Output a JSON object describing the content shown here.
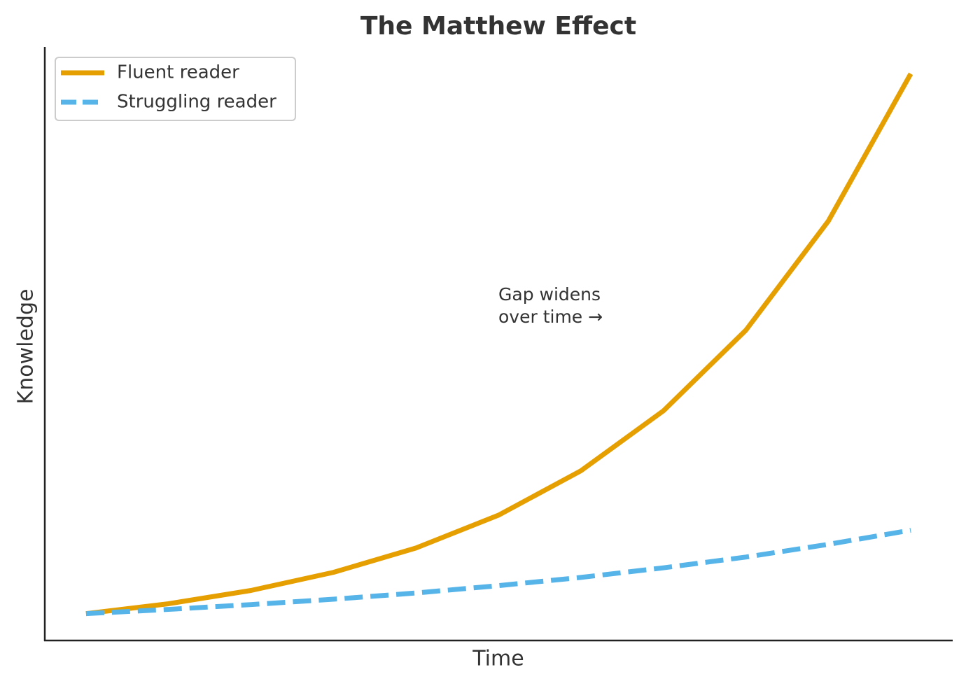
{
  "chart_data": {
    "type": "line",
    "title": "The Matthew Effect",
    "x_label": "Time",
    "y_label": "Knowledge",
    "x": [
      0,
      1,
      2,
      3,
      4,
      5,
      6,
      7,
      8,
      9,
      10
    ],
    "series": [
      {
        "name": "Fluent reader",
        "color": "#e69f00",
        "line_style": "solid",
        "values": [
          1,
          1.35,
          1.82,
          2.46,
          3.32,
          4.48,
          6.05,
          8.17,
          11.02,
          14.88,
          20.09
        ]
      },
      {
        "name": "Struggling reader",
        "color": "#56b4e9",
        "line_style": "dashed",
        "values": [
          1,
          1.15,
          1.32,
          1.51,
          1.73,
          1.99,
          2.28,
          2.62,
          3.0,
          3.45,
          3.95
        ]
      }
    ],
    "xlim": [
      -0.5,
      10.5
    ],
    "ylim": [
      0.05,
      21.04
    ],
    "legend": "upper left",
    "annotation": [
      "Gap widens",
      "over time →"
    ]
  }
}
